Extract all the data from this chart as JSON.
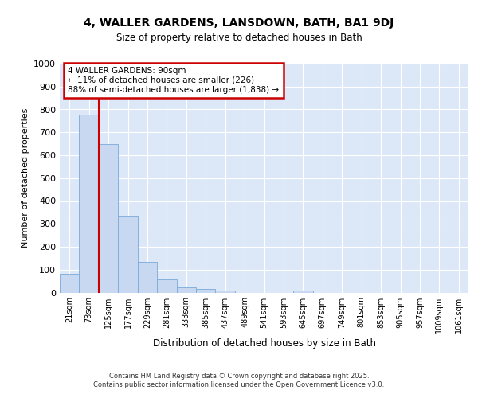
{
  "title": "4, WALLER GARDENS, LANSDOWN, BATH, BA1 9DJ",
  "subtitle": "Size of property relative to detached houses in Bath",
  "xlabel": "Distribution of detached houses by size in Bath",
  "ylabel": "Number of detached properties",
  "bar_color": "#c8d8f0",
  "bar_edge_color": "#7aaad8",
  "bg_color": "#dce8f8",
  "grid_color": "#ffffff",
  "fig_bg_color": "#ffffff",
  "categories": [
    "21sqm",
    "73sqm",
    "125sqm",
    "177sqm",
    "229sqm",
    "281sqm",
    "333sqm",
    "385sqm",
    "437sqm",
    "489sqm",
    "541sqm",
    "593sqm",
    "645sqm",
    "697sqm",
    "749sqm",
    "801sqm",
    "853sqm",
    "905sqm",
    "957sqm",
    "1009sqm",
    "1061sqm"
  ],
  "values": [
    82,
    778,
    648,
    335,
    135,
    58,
    22,
    16,
    8,
    0,
    0,
    0,
    10,
    0,
    0,
    0,
    0,
    0,
    0,
    0,
    0
  ],
  "red_line_x": 1.5,
  "annotation_text": "4 WALLER GARDENS: 90sqm\n← 11% of detached houses are smaller (226)\n88% of semi-detached houses are larger (1,838) →",
  "annotation_box_color": "#ffffff",
  "annotation_edge_color": "#cc0000",
  "red_line_color": "#cc0000",
  "ylim": [
    0,
    1000
  ],
  "yticks": [
    0,
    100,
    200,
    300,
    400,
    500,
    600,
    700,
    800,
    900,
    1000
  ],
  "footer_line1": "Contains HM Land Registry data © Crown copyright and database right 2025.",
  "footer_line2": "Contains public sector information licensed under the Open Government Licence v3.0."
}
